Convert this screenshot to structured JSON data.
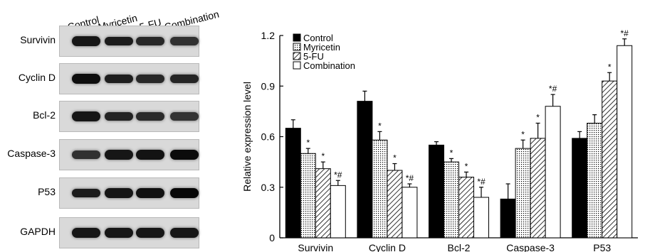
{
  "western_blot": {
    "lanes": [
      "Control",
      "Myricetin",
      "5-FU",
      "Combination"
    ],
    "rows": [
      {
        "label": "Survivin",
        "intensity": [
          0.85,
          0.8,
          0.7,
          0.62
        ]
      },
      {
        "label": "Cyclin D",
        "intensity": [
          0.92,
          0.78,
          0.7,
          0.72
        ]
      },
      {
        "label": "Bcl-2",
        "intensity": [
          0.85,
          0.75,
          0.68,
          0.6
        ]
      },
      {
        "label": "Caspase-3",
        "intensity": [
          0.62,
          0.85,
          0.88,
          0.95
        ]
      },
      {
        "label": "P53",
        "intensity": [
          0.8,
          0.85,
          0.9,
          0.98
        ]
      },
      {
        "label": "GAPDH",
        "intensity": [
          0.85,
          0.85,
          0.85,
          0.85
        ]
      }
    ]
  },
  "chart_data": {
    "type": "bar",
    "ylabel": "Relative expression level",
    "xlabel": "",
    "ylim": [
      0,
      1.2
    ],
    "yticks": [
      "0",
      "0.3",
      "0.6",
      "0.9",
      "1.2"
    ],
    "categories": [
      "Survivin",
      "Cyclin D",
      "Bcl-2",
      "Caspase-3",
      "P53"
    ],
    "legend_position": "top-left",
    "series": [
      {
        "name": "Control",
        "fill": "solid-black",
        "values": [
          0.65,
          0.81,
          0.55,
          0.23,
          0.59
        ],
        "errors": [
          0.05,
          0.06,
          0.02,
          0.09,
          0.04
        ],
        "annotations": [
          "",
          "",
          "",
          "",
          ""
        ]
      },
      {
        "name": "Myricetin",
        "fill": "dotted",
        "values": [
          0.5,
          0.58,
          0.45,
          0.53,
          0.68
        ],
        "errors": [
          0.03,
          0.05,
          0.02,
          0.05,
          0.05
        ],
        "annotations": [
          "*",
          "*",
          "*",
          "*",
          ""
        ]
      },
      {
        "name": "5-FU",
        "fill": "diagonal-hatch",
        "values": [
          0.41,
          0.4,
          0.36,
          0.59,
          0.93
        ],
        "errors": [
          0.04,
          0.04,
          0.03,
          0.09,
          0.05
        ],
        "annotations": [
          "*",
          "*",
          "*",
          "*",
          "*"
        ]
      },
      {
        "name": "Combination",
        "fill": "white",
        "values": [
          0.31,
          0.3,
          0.24,
          0.78,
          1.14
        ],
        "errors": [
          0.03,
          0.02,
          0.06,
          0.07,
          0.04
        ],
        "annotations": [
          "*#",
          "*#",
          "*#",
          "*#",
          "*#"
        ]
      }
    ]
  }
}
